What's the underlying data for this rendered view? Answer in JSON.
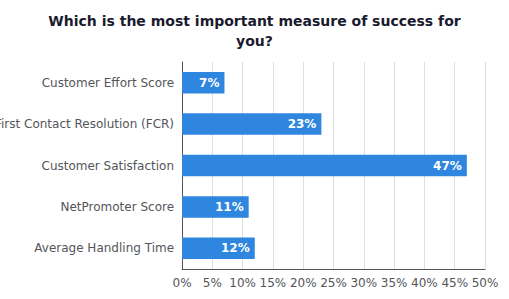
{
  "chart_data": {
    "type": "bar",
    "orientation": "horizontal",
    "title": "Which is the most important measure of success for\nyou?",
    "categories": [
      "Average Handling Time",
      "NetPromoter Score",
      "Customer Satisfaction",
      "First Contact Resolution (FCR)",
      "Customer Effort Score"
    ],
    "values": [
      12,
      11,
      47,
      23,
      7
    ],
    "value_labels": [
      "12%",
      "11%",
      "47%",
      "23%",
      "7%"
    ],
    "data_labels": true,
    "color": "#2E86DE",
    "xlim": [
      0,
      50
    ],
    "xticks": [
      {
        "value": 0,
        "label": "0%"
      },
      {
        "value": 5,
        "label": "5%"
      },
      {
        "value": 10,
        "label": "10%"
      },
      {
        "value": 15,
        "label": "15%"
      },
      {
        "value": 20,
        "label": "20%"
      },
      {
        "value": 25,
        "label": "25%"
      },
      {
        "value": 30,
        "label": "30%"
      },
      {
        "value": 35,
        "label": "35%"
      },
      {
        "value": 40,
        "label": "40%"
      },
      {
        "value": 45,
        "label": "45%"
      },
      {
        "value": 50,
        "label": "50%"
      }
    ],
    "grid": true
  }
}
